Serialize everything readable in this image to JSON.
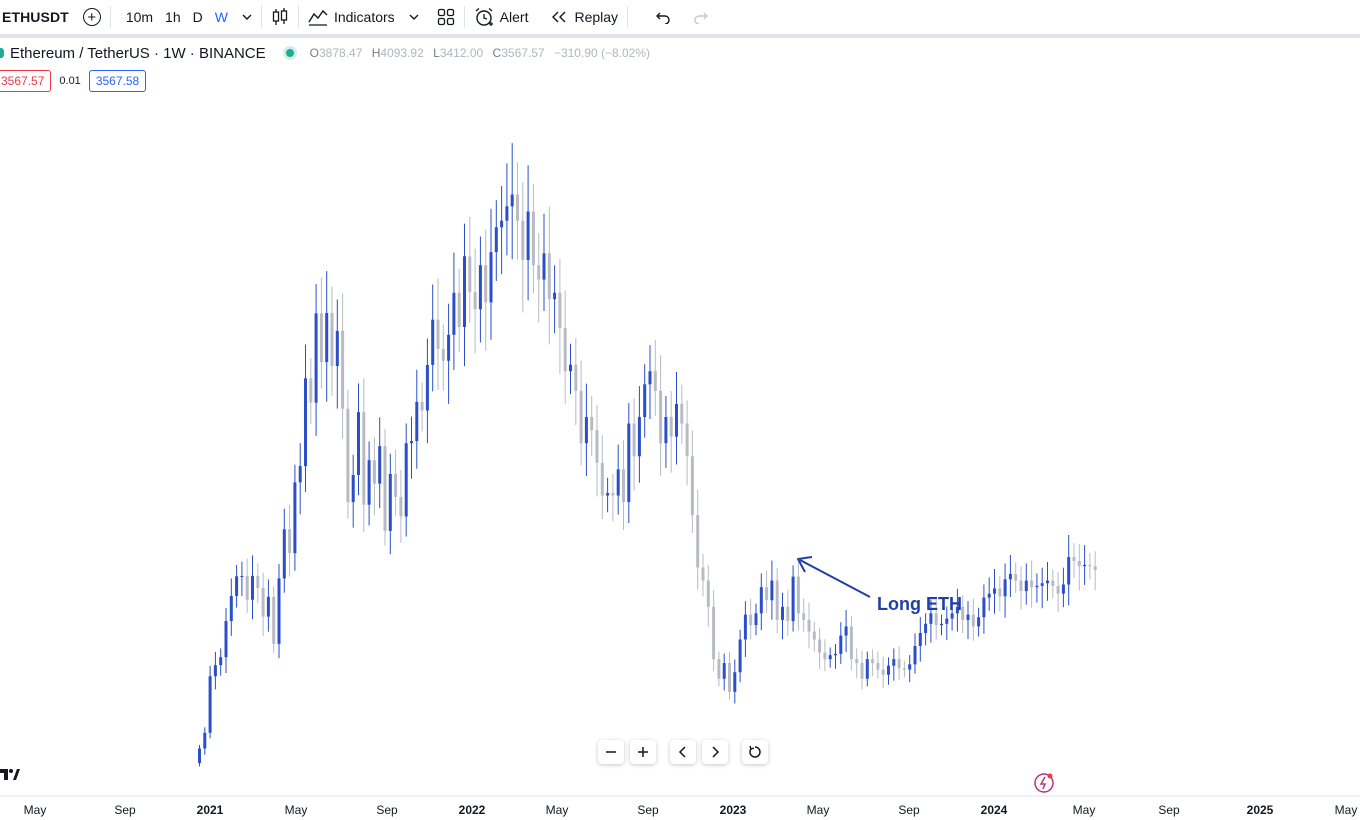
{
  "toolbar": {
    "symbol": "ETHUSDT",
    "add_icon": "plus-circle-icon",
    "intervals": [
      "10m",
      "1h",
      "D",
      "W"
    ],
    "active_interval": "W",
    "chart_type_icon": "candles-icon",
    "indicators_label": "Indicators",
    "layout_icon": "layout-grid-icon",
    "alert_label": "Alert",
    "replay_label": "Replay",
    "undo_icon": "undo-icon",
    "redo_icon": "redo-icon"
  },
  "legend": {
    "title": "Ethereum / TetherUS · 1W · BINANCE",
    "o_label": "O",
    "o": "3878.47",
    "h_label": "H",
    "h": "4093.92",
    "l_label": "L",
    "l": "3412.00",
    "c_label": "C",
    "c": "3567.57",
    "change": "−310.90 (−8.02%)"
  },
  "prices": {
    "sell": "3567.57",
    "spread": "0.01",
    "buy": "3567.58"
  },
  "annotation": {
    "text": "Long ETH"
  },
  "nav": [
    "zoom-out-icon",
    "zoom-in-icon",
    "scroll-left-icon",
    "scroll-right-icon",
    "reset-icon"
  ],
  "colors": {
    "up": "#2a4fc8",
    "down": "#b8bbc4",
    "accent": "#2962ff",
    "annotation": "#1e3fa8"
  },
  "chart_data": {
    "type": "candlestick",
    "symbol": "ETHUSDT",
    "interval": "1W",
    "exchange": "BINANCE",
    "x_ticks": [
      "May",
      "Sep",
      "2021",
      "May",
      "Sep",
      "2022",
      "May",
      "Sep",
      "2023",
      "May",
      "Sep",
      "2024",
      "May",
      "Sep",
      "2025",
      "May"
    ],
    "bias": [
      1,
      1,
      1,
      1,
      1,
      1,
      1,
      1,
      1,
      0,
      1,
      1,
      0,
      1,
      0,
      1,
      1,
      0,
      1,
      1,
      1,
      0,
      1,
      0,
      1,
      0,
      1,
      0,
      0,
      1,
      1,
      0,
      1,
      1,
      1,
      0,
      1,
      0,
      0,
      1,
      1,
      1,
      0,
      1,
      1,
      0,
      1,
      1,
      1,
      0,
      1,
      0,
      0,
      1,
      0,
      1,
      1,
      1,
      1,
      1,
      0,
      0,
      1,
      0,
      0,
      1,
      0,
      1,
      0,
      0,
      0,
      0,
      0,
      0,
      0,
      0,
      0,
      0,
      0,
      1,
      0,
      1,
      0,
      1,
      1,
      1,
      0,
      0,
      1,
      0,
      1,
      0,
      0,
      0,
      1,
      0,
      1,
      0,
      1,
      0,
      1,
      1,
      0,
      1,
      0,
      1,
      1,
      1,
      1,
      0,
      1,
      0,
      1,
      1,
      0,
      0,
      1,
      1,
      1,
      0,
      1,
      0,
      0,
      1,
      1,
      0,
      1,
      0,
      1,
      0,
      0,
      1,
      0,
      0,
      0,
      0,
      0,
      1,
      0,
      1,
      0,
      1,
      1,
      1,
      0,
      1,
      1,
      1,
      0,
      1,
      1,
      1,
      1,
      0,
      1,
      1,
      1,
      0,
      1,
      1,
      0,
      1,
      1,
      1,
      0,
      0
    ],
    "close": [
      617,
      737,
      1169,
      1254,
      1315,
      1591,
      1783,
      1933,
      1935,
      1754,
      1936,
      1844,
      1625,
      1776,
      1417,
      1917,
      2292,
      2110,
      2651,
      2775,
      3446,
      3260,
      3942,
      3570,
      3945,
      3540,
      3808,
      3214,
      2500,
      2707,
      3187,
      2480,
      2820,
      2641,
      2928,
      2280,
      2715,
      2540,
      2390,
      2950,
      2966,
      3266,
      3200,
      3548,
      3894,
      3670,
      3580,
      3778,
      4099,
      3838,
      4378,
      4104,
      3974,
      4310,
      4026,
      4410,
      4600,
      4650,
      4760,
      4850,
      4650,
      4350,
      4720,
      4310,
      4200,
      4400,
      4050,
      4100,
      3830,
      3500,
      3550,
      3350,
      2950,
      3150,
      3050,
      2800,
      2550,
      2570,
      2550,
      2750,
      2500,
      3100,
      2850,
      3150,
      3400,
      3500,
      3350,
      2950,
      3150,
      3000,
      3250,
      3100,
      2850,
      2400,
      2000,
      1900,
      1700,
      1300,
      1150,
      1270,
      1050,
      1200,
      1450,
      1640,
      1560,
      1650,
      1850,
      1750,
      1900,
      1600,
      1700,
      1590,
      1930,
      1650,
      1600,
      1510,
      1450,
      1350,
      1300,
      1330,
      1340,
      1480,
      1550,
      1300,
      1270,
      1150,
      1300,
      1270,
      1220,
      1180,
      1250,
      1300,
      1230,
      1220,
      1260,
      1400,
      1500,
      1570,
      1650,
      1560,
      1570,
      1610,
      1650,
      1700,
      1600,
      1640,
      1550,
      1620,
      1770,
      1800,
      1840,
      1780,
      1910,
      1950,
      1900,
      1820,
      1900,
      1850,
      1860,
      1880,
      1900,
      1860,
      1800,
      1870,
      2080,
      2050,
      2010,
      2020,
      2010,
      1980
    ],
    "note": "Values are approximate weekly candles read off the unlabeled-price chart."
  }
}
